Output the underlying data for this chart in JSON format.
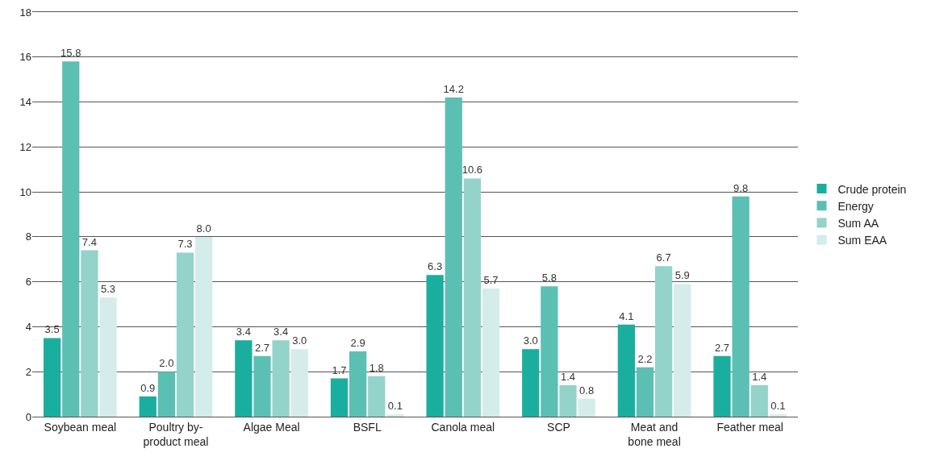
{
  "chart_data": {
    "type": "bar",
    "categories": [
      "Soybean meal",
      "Poultry by-product meal",
      "Algae Meal",
      "BSFL",
      "Canola meal",
      "SCP",
      "Meat and bone meal",
      "Feather meal"
    ],
    "series": [
      {
        "name": "Crude protein",
        "color": "#1aae9f",
        "values": [
          3.5,
          0.9,
          3.4,
          1.7,
          6.3,
          3.0,
          4.1,
          2.7
        ],
        "value_labels": [
          "3.5",
          "0.9",
          "3.4",
          "1.7",
          "6.3",
          "3.0",
          "4.1",
          "2.7"
        ]
      },
      {
        "name": "Energy",
        "color": "#5cbfb4",
        "values": [
          15.8,
          2.0,
          2.7,
          2.9,
          14.2,
          5.8,
          2.2,
          9.8
        ],
        "value_labels": [
          "15.8",
          "2.0",
          "2.7",
          "2.9",
          "14.2",
          "5.8",
          "2.2",
          "9.8"
        ]
      },
      {
        "name": "Sum AA",
        "color": "#93d3ca",
        "values": [
          7.4,
          7.3,
          3.4,
          1.8,
          10.6,
          1.4,
          6.7,
          1.4
        ],
        "value_labels": [
          "7.4",
          "7.3",
          "3.4",
          "1.8",
          "10.6",
          "1.4",
          "6.7",
          "1.4"
        ]
      },
      {
        "name": "Sum EAA",
        "color": "#d4ecea",
        "values": [
          5.3,
          8.0,
          3.0,
          0.1,
          5.7,
          0.8,
          5.9,
          0.1
        ],
        "value_labels": [
          "5.3",
          "8.0",
          "3.0",
          "0.1",
          "5.7",
          "0.8",
          "5.9",
          "0.1"
        ]
      }
    ],
    "ylim": [
      0,
      18
    ],
    "yticks": [
      0,
      2,
      4,
      6,
      8,
      10,
      12,
      14,
      16,
      18
    ],
    "grid": "y",
    "legend": "right"
  }
}
